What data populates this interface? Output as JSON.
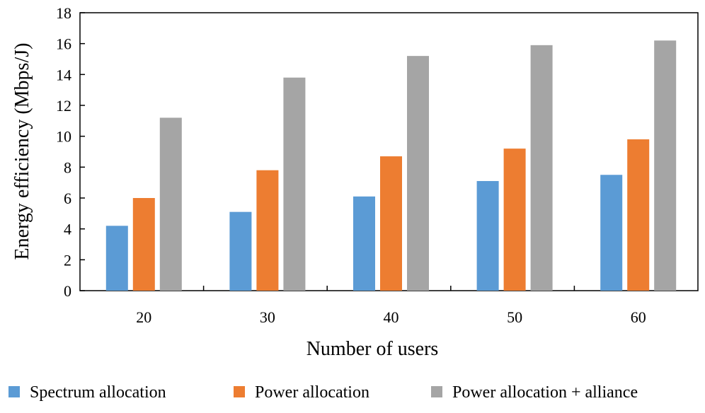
{
  "chart_data": {
    "type": "bar",
    "title": "",
    "xlabel": "Number of users",
    "ylabel": "Energy efficiency (Mbps/J)",
    "categories": [
      "20",
      "30",
      "40",
      "50",
      "60"
    ],
    "series": [
      {
        "name": "Spectrum allocation",
        "color": "#5b9bd5",
        "values": [
          4.2,
          5.1,
          6.1,
          7.1,
          7.5
        ]
      },
      {
        "name": "Power allocation",
        "color": "#ed7d31",
        "values": [
          6.0,
          7.8,
          8.7,
          9.2,
          9.8
        ]
      },
      {
        "name": "Power allocation + alliance",
        "color": "#a5a5a5",
        "values": [
          11.2,
          13.8,
          15.2,
          15.9,
          16.2
        ]
      }
    ],
    "ylim": [
      0,
      18
    ],
    "yticks": [
      "0",
      "2",
      "4",
      "6",
      "8",
      "10",
      "12",
      "14",
      "16",
      "18"
    ],
    "grid": false,
    "legend_position": "bottom"
  }
}
